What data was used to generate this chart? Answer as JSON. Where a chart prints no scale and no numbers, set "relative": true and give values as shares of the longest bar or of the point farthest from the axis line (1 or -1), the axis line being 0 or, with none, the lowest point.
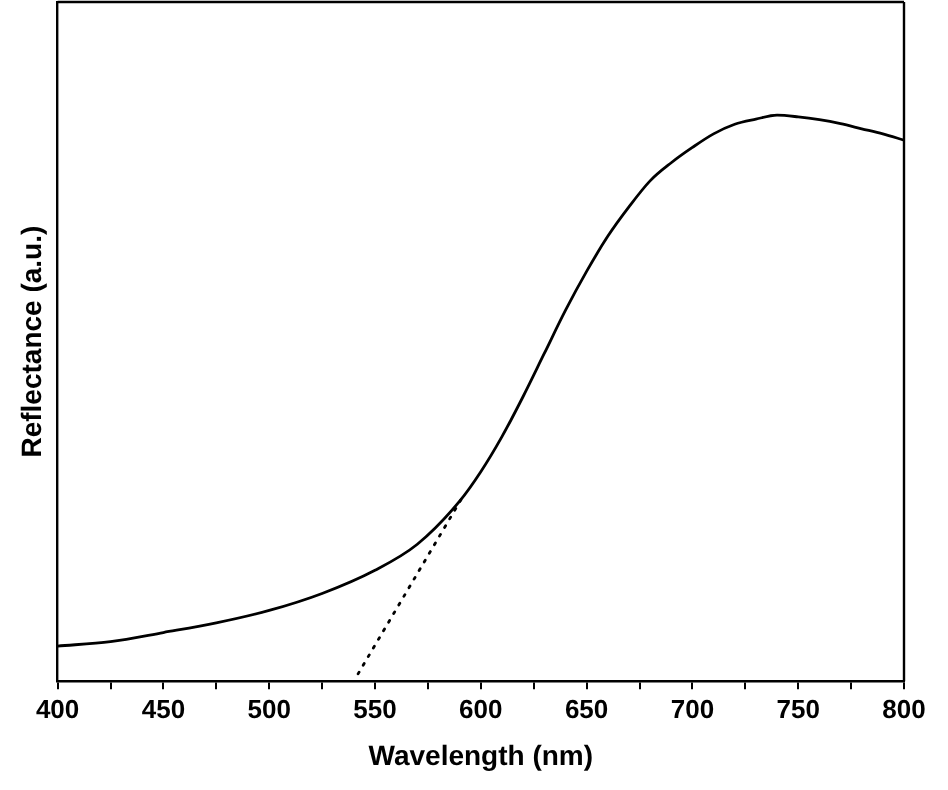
{
  "chart_data": {
    "type": "line",
    "xlabel": "Wavelength (nm)",
    "ylabel": "Reflectance (a.u.)",
    "relative": true,
    "xlim": [
      400,
      800
    ],
    "xticks": [
      400,
      {
        "value": 425,
        "label": null
      },
      450,
      {
        "value": 475,
        "label": null
      },
      500,
      {
        "value": 525,
        "label": null
      },
      550,
      {
        "value": 575,
        "label": null
      },
      600,
      {
        "value": 625,
        "label": null
      },
      650,
      {
        "value": 675,
        "label": null
      },
      700,
      {
        "value": 725,
        "label": null
      },
      750,
      {
        "value": 775,
        "label": null
      },
      800
    ],
    "grid": false,
    "legend": false,
    "marker": "none",
    "series": [
      {
        "color": "#000000",
        "line_style": "solid",
        "x": [
          400,
          425,
          450,
          475,
          500,
          525,
          550,
          570,
          590,
          600,
          610,
          620,
          630,
          640,
          650,
          660,
          670,
          680,
          690,
          700,
          710,
          720,
          730,
          740,
          750,
          760,
          770,
          780,
          790,
          800
        ],
        "values": [
          0.062,
          0.07,
          0.086,
          0.103,
          0.125,
          0.155,
          0.196,
          0.242,
          0.318,
          0.37,
          0.432,
          0.503,
          0.579,
          0.655,
          0.724,
          0.786,
          0.838,
          0.884,
          0.916,
          0.943,
          0.967,
          0.984,
          0.993,
          1,
          0.997,
          0.992,
          0.985,
          0.976,
          0.967,
          0.956
        ]
      },
      {
        "color": "#000000",
        "line_style": "dotted",
        "x": [
          542,
          591
        ],
        "values": [
          0.013,
          0.323
        ]
      }
    ]
  }
}
